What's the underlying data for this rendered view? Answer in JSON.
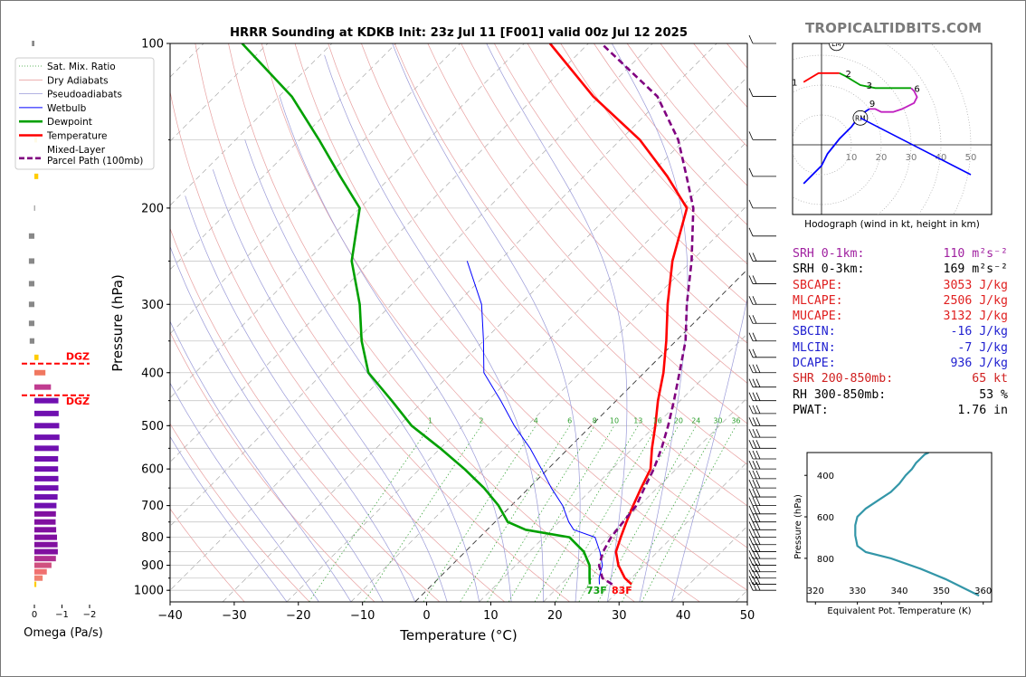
{
  "brand": "TROPICALTIDBITS.COM",
  "skewt": {
    "title": "HRRR Sounding at KDKB Init: 23z Jul 11 [F001] valid 00z Jul 12 2025",
    "xlabel": "Temperature (°C)",
    "ylabel": "Pressure (hPa)",
    "x_ticks": [
      "−40",
      "−30",
      "−20",
      "−10",
      "0",
      "10",
      "20",
      "30",
      "40",
      "50"
    ],
    "y_ticks": [
      "100",
      "200",
      "300",
      "400",
      "500",
      "600",
      "700",
      "800",
      "900",
      "1000"
    ],
    "mixing_ratio_labels": [
      "1",
      "2",
      "4",
      "6",
      "8",
      "10",
      "13",
      "16",
      "20",
      "24",
      "30",
      "36"
    ],
    "sfc_dewpoint_label": "73F",
    "sfc_temp_label": "83F",
    "legend": [
      "Sat. Mix. Ratio",
      "Dry Adiabats",
      "Pseudoadiabats",
      "Wetbulb",
      "Dewpoint",
      "Temperature",
      "Mixed-Layer\nParcel Path (100mb)"
    ]
  },
  "chart_data": [
    {
      "type": "line",
      "title": "HRRR Sounding at KDKB Init: 23z Jul 11 [F001] valid 00z Jul 12 2025",
      "xlabel": "Temperature (°C)",
      "ylabel": "Pressure (hPa)",
      "xlim": [
        -40,
        50
      ],
      "ylim": [
        1050,
        100
      ],
      "y_scale": "log",
      "skew": "45deg",
      "series": [
        {
          "name": "Temperature",
          "color": "#ff0000",
          "points": [
            [
              31,
              975
            ],
            [
              29,
              950
            ],
            [
              26,
              900
            ],
            [
              23.5,
              850
            ],
            [
              22,
              800
            ],
            [
              20.5,
              750
            ],
            [
              19,
              700
            ],
            [
              17.5,
              650
            ],
            [
              16,
              600
            ],
            [
              13,
              550
            ],
            [
              10,
              500
            ],
            [
              6.5,
              450
            ],
            [
              3,
              400
            ],
            [
              -1.5,
              350
            ],
            [
              -7,
              300
            ],
            [
              -13,
              250
            ],
            [
              -19,
              200
            ],
            [
              -27,
              175
            ],
            [
              -37,
              150
            ],
            [
              -51,
              125
            ],
            [
              -66,
              100
            ]
          ]
        },
        {
          "name": "Dewpoint",
          "color": "#00a000",
          "points": [
            [
              24.5,
              975
            ],
            [
              23.5,
              950
            ],
            [
              21.5,
              900
            ],
            [
              18.5,
              850
            ],
            [
              14,
              800
            ],
            [
              6,
              775
            ],
            [
              2,
              750
            ],
            [
              -2,
              700
            ],
            [
              -7,
              650
            ],
            [
              -13,
              600
            ],
            [
              -20,
              550
            ],
            [
              -28,
              500
            ],
            [
              -35,
              450
            ],
            [
              -43,
              400
            ],
            [
              -49,
              350
            ],
            [
              -55,
              300
            ],
            [
              -63,
              250
            ],
            [
              -70,
              200
            ],
            [
              -78,
              175
            ],
            [
              -87,
              150
            ],
            [
              -98,
              125
            ],
            [
              -114,
              100
            ]
          ]
        },
        {
          "name": "Wetbulb",
          "color": "#0000ff",
          "points": [
            [
              26,
              975
            ],
            [
              25,
              950
            ],
            [
              23.5,
              900
            ],
            [
              21,
              850
            ],
            [
              18,
              800
            ],
            [
              13.5,
              775
            ],
            [
              11.5,
              750
            ],
            [
              8,
              700
            ],
            [
              3.5,
              650
            ],
            [
              -1,
              600
            ],
            [
              -6,
              550
            ],
            [
              -12,
              500
            ],
            [
              -18,
              450
            ],
            [
              -25,
              400
            ],
            [
              -30,
              350
            ],
            [
              -36,
              300
            ],
            [
              -45,
              250
            ]
          ]
        },
        {
          "name": "Mixed-Layer Parcel Path (100mb)",
          "color": "#800080",
          "points": [
            [
              28,
              975
            ],
            [
              25.5,
              950
            ],
            [
              23,
              900
            ],
            [
              21.5,
              850
            ],
            [
              20.5,
              800
            ],
            [
              20,
              750
            ],
            [
              19.5,
              700
            ],
            [
              18,
              650
            ],
            [
              16.5,
              600
            ],
            [
              14.5,
              550
            ],
            [
              12,
              500
            ],
            [
              9,
              450
            ],
            [
              5.5,
              400
            ],
            [
              1.5,
              350
            ],
            [
              -4,
              300
            ],
            [
              -10,
              250
            ],
            [
              -18,
              200
            ],
            [
              -24,
              175
            ],
            [
              -31,
              150
            ],
            [
              -41,
              125
            ],
            [
              -58,
              100
            ]
          ]
        }
      ]
    },
    {
      "type": "bar",
      "title": "",
      "xlabel": "Omega (Pa/s)",
      "x_ticks": [
        "0",
        "−1",
        "−2"
      ],
      "xlim": [
        0.15,
        -2.35
      ],
      "dgz_label": "DGZ",
      "dgz_top_p": 385,
      "dgz_bottom_p": 440,
      "bars": [
        {
          "p": 975,
          "v": -0.07,
          "color": "#ffcc00"
        },
        {
          "p": 950,
          "v": -0.3,
          "color": "#f08070"
        },
        {
          "p": 925,
          "v": -0.45,
          "color": "#f07070"
        },
        {
          "p": 900,
          "v": -0.62,
          "color": "#d05080"
        },
        {
          "p": 875,
          "v": -0.78,
          "color": "#b03090"
        },
        {
          "p": 850,
          "v": -0.85,
          "color": "#8010a0"
        },
        {
          "p": 825,
          "v": -0.84,
          "color": "#8010a0"
        },
        {
          "p": 800,
          "v": -0.82,
          "color": "#8010a0"
        },
        {
          "p": 775,
          "v": -0.79,
          "color": "#8010a0"
        },
        {
          "p": 750,
          "v": -0.77,
          "color": "#8010a0"
        },
        {
          "p": 725,
          "v": -0.78,
          "color": "#8010a0"
        },
        {
          "p": 700,
          "v": -0.8,
          "color": "#7010b0"
        },
        {
          "p": 675,
          "v": -0.84,
          "color": "#7010b0"
        },
        {
          "p": 650,
          "v": -0.87,
          "color": "#7010b0"
        },
        {
          "p": 625,
          "v": -0.87,
          "color": "#7010b0"
        },
        {
          "p": 600,
          "v": -0.86,
          "color": "#7010b0"
        },
        {
          "p": 575,
          "v": -0.86,
          "color": "#7010b0"
        },
        {
          "p": 550,
          "v": -0.88,
          "color": "#7010b0"
        },
        {
          "p": 525,
          "v": -0.91,
          "color": "#7010b0"
        },
        {
          "p": 500,
          "v": -0.9,
          "color": "#7010b0"
        },
        {
          "p": 475,
          "v": -0.88,
          "color": "#7010b0"
        },
        {
          "p": 450,
          "v": -0.87,
          "color": "#7010b0"
        },
        {
          "p": 425,
          "v": -0.6,
          "color": "#c03c90"
        },
        {
          "p": 400,
          "v": -0.4,
          "color": "#f07860"
        },
        {
          "p": 375,
          "v": -0.15,
          "color": "#ffcc00"
        },
        {
          "p": 350,
          "v": 0.17,
          "color": "#888888"
        },
        {
          "p": 325,
          "v": 0.2,
          "color": "#888888"
        },
        {
          "p": 300,
          "v": 0.2,
          "color": "#888888"
        },
        {
          "p": 275,
          "v": 0.2,
          "color": "#888888"
        },
        {
          "p": 250,
          "v": 0.2,
          "color": "#888888"
        },
        {
          "p": 225,
          "v": 0.2,
          "color": "#888888"
        },
        {
          "p": 200,
          "v": 0.01,
          "color": "#888888"
        },
        {
          "p": 175,
          "v": -0.14,
          "color": "#ffcc00"
        },
        {
          "p": 150,
          "v": -0.1,
          "color": "#ffcc00"
        },
        {
          "p": 100,
          "v": 0.09,
          "color": "#888888"
        }
      ]
    },
    {
      "type": "line",
      "title": "Hodograph (wind in kt, height in km)",
      "ring_labels": [
        "10",
        "20",
        "30",
        "40",
        "50"
      ],
      "points_kt": [
        [
          -6,
          21
        ],
        [
          -1,
          24
        ],
        [
          6,
          24
        ],
        [
          8,
          23
        ],
        [
          13,
          20
        ],
        [
          18,
          19
        ],
        [
          23,
          19
        ],
        [
          30,
          19
        ],
        [
          31,
          18
        ],
        [
          32,
          16
        ],
        [
          31,
          14
        ],
        [
          27,
          12
        ],
        [
          24,
          11
        ],
        [
          20,
          11
        ],
        [
          18,
          12
        ],
        [
          16,
          12
        ],
        [
          13,
          10
        ],
        [
          10,
          6
        ],
        [
          6,
          2
        ],
        [
          2,
          -3
        ],
        [
          0,
          -7
        ],
        [
          -3,
          -10
        ],
        [
          -6,
          -13
        ]
      ],
      "height_labels": [
        "1",
        "2",
        "3",
        "6",
        "9"
      ],
      "storm_motion": {
        "LM": [
          5,
          34
        ],
        "RM": [
          13,
          9
        ]
      },
      "mean_wind_vector": {
        "from": [
          13,
          9
        ],
        "to": [
          50,
          -10
        ]
      }
    },
    {
      "type": "line",
      "title": "",
      "xlabel": "Equivalent Pot. Temperature (K)",
      "ylabel": "Pressure (hPa)",
      "x_ticks": [
        "320",
        "330",
        "340",
        "350",
        "360"
      ],
      "y_ticks": [
        "400",
        "600",
        "800"
      ],
      "xlim": [
        318,
        362
      ],
      "ylim": [
        1010,
        290
      ],
      "color": "#3396a8",
      "series": [
        {
          "name": "",
          "points": [
            [
              359,
              980
            ],
            [
              356,
              950
            ],
            [
              351,
              900
            ],
            [
              345,
              850
            ],
            [
              338,
              800
            ],
            [
              332,
              770
            ],
            [
              330,
              740
            ],
            [
              329.5,
              690
            ],
            [
              329.5,
              640
            ],
            [
              330,
              600
            ],
            [
              332,
              560
            ],
            [
              335,
              520
            ],
            [
              338,
              480
            ],
            [
              340,
              440
            ],
            [
              341.5,
              400
            ],
            [
              343,
              370
            ],
            [
              344,
              340
            ],
            [
              345,
              320
            ],
            [
              346,
              300
            ],
            [
              347,
              290
            ]
          ]
        }
      ]
    }
  ],
  "indices": [
    {
      "label": "SRH 0-1km:",
      "value": "110 m²s⁻²",
      "color": "#a020a0"
    },
    {
      "label": "SRH 0-3km:",
      "value": "169 m²s⁻²",
      "color": "#000000"
    },
    {
      "label": "SBCAPE:",
      "value": "3053 J/kg",
      "color": "#e02020"
    },
    {
      "label": "MLCAPE:",
      "value": "2506 J/kg",
      "color": "#e02020"
    },
    {
      "label": "MUCAPE:",
      "value": "3132 J/kg",
      "color": "#e02020"
    },
    {
      "label": "SBCIN:",
      "value": "-16 J/kg",
      "color": "#2020d0"
    },
    {
      "label": "MLCIN:",
      "value": "-7 J/kg",
      "color": "#2020d0"
    },
    {
      "label": "DCAPE:",
      "value": "936 J/kg",
      "color": "#2020d0"
    },
    {
      "label": "SHR 200-850mb:",
      "value": "65 kt",
      "color": "#d02020"
    },
    {
      "label": "RH 300-850mb:",
      "value": "53 %",
      "color": "#000000"
    },
    {
      "label": "PWAT:",
      "value": "1.76 in",
      "color": "#000000"
    }
  ]
}
